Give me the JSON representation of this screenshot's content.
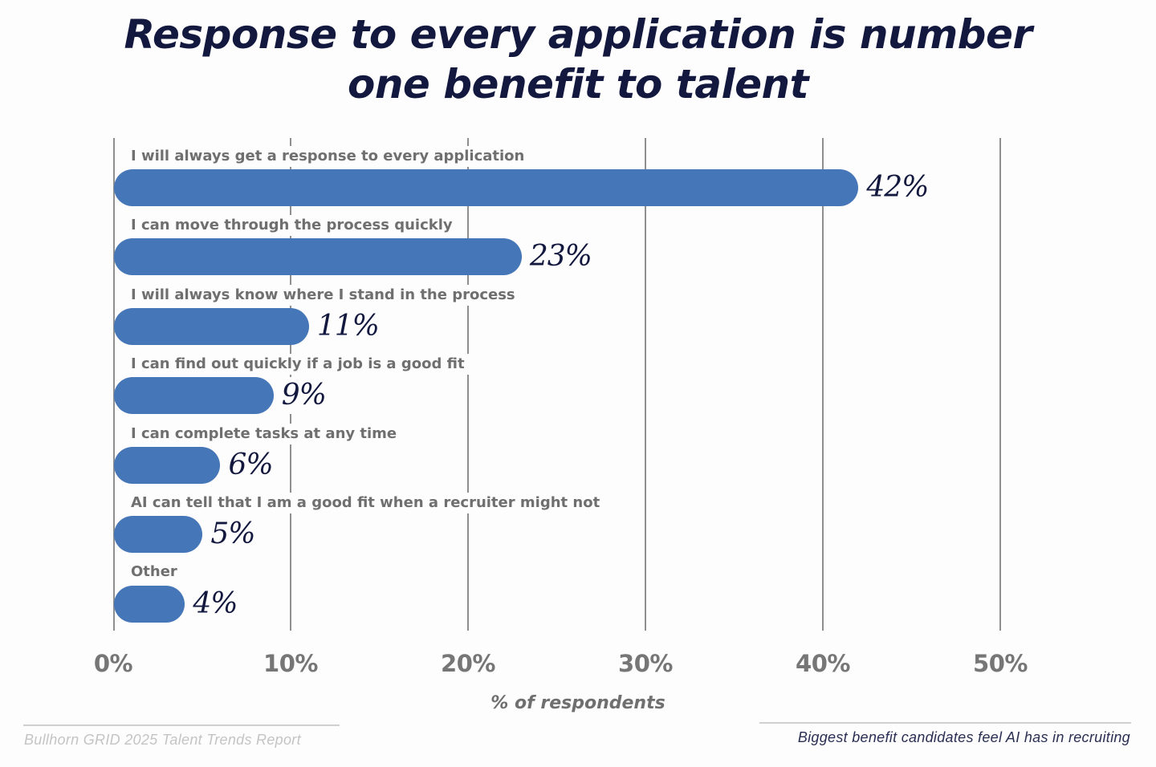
{
  "header": {
    "title_line1": "Response to every application is number",
    "title_line2": "one benefit to talent"
  },
  "colors": {
    "bar": "#4576b7",
    "title": "#13183f",
    "label": "#6f6f6f",
    "gridline": "#8f8f8f"
  },
  "axis": {
    "ticks": [
      "0%",
      "10%",
      "20%",
      "30%",
      "40%",
      "50%"
    ],
    "xlabel": "% of respondents"
  },
  "rows": [
    {
      "label": "I will always get a response to every application",
      "value": 42,
      "value_label": "42%"
    },
    {
      "label": "I can move through the process quickly",
      "value": 23,
      "value_label": "23%"
    },
    {
      "label": "I will always know where I stand in the process",
      "value": 11,
      "value_label": "11%"
    },
    {
      "label": "I can find out quickly if a job is a good fit",
      "value": 9,
      "value_label": "9%"
    },
    {
      "label": "I can complete tasks at any time",
      "value": 6,
      "value_label": "6%"
    },
    {
      "label": "AI can tell that I am a good fit when a recruiter might not",
      "value": 5,
      "value_label": "5%"
    },
    {
      "label": "Other",
      "value": 4,
      "value_label": "4%"
    }
  ],
  "footer": {
    "source": "Bullhorn GRID 2025 Talent Trends Report",
    "caption": "Biggest benefit candidates feel AI has in recruiting"
  },
  "chart_data": {
    "type": "bar",
    "orientation": "horizontal",
    "title": "Response to every application is number one benefit to talent",
    "subtitle": "Biggest benefit candidates feel AI has in recruiting",
    "categories": [
      "I will always get a response to every application",
      "I can move through the process quickly",
      "I will always know where I stand in the process",
      "I can find out quickly if a job is a good fit",
      "I can complete tasks at any time",
      "AI can tell that I am a good fit when a recruiter might not",
      "Other"
    ],
    "values": [
      42,
      23,
      11,
      9,
      6,
      5,
      4
    ],
    "xlabel": "% of respondents",
    "ylabel": "",
    "xlim": [
      0,
      50
    ],
    "xticks": [
      "0%",
      "10%",
      "20%",
      "30%",
      "40%",
      "50%"
    ],
    "grid": "vertical",
    "legend": "none",
    "data_labels": true,
    "source": "Bullhorn GRID 2025 Talent Trends Report"
  }
}
